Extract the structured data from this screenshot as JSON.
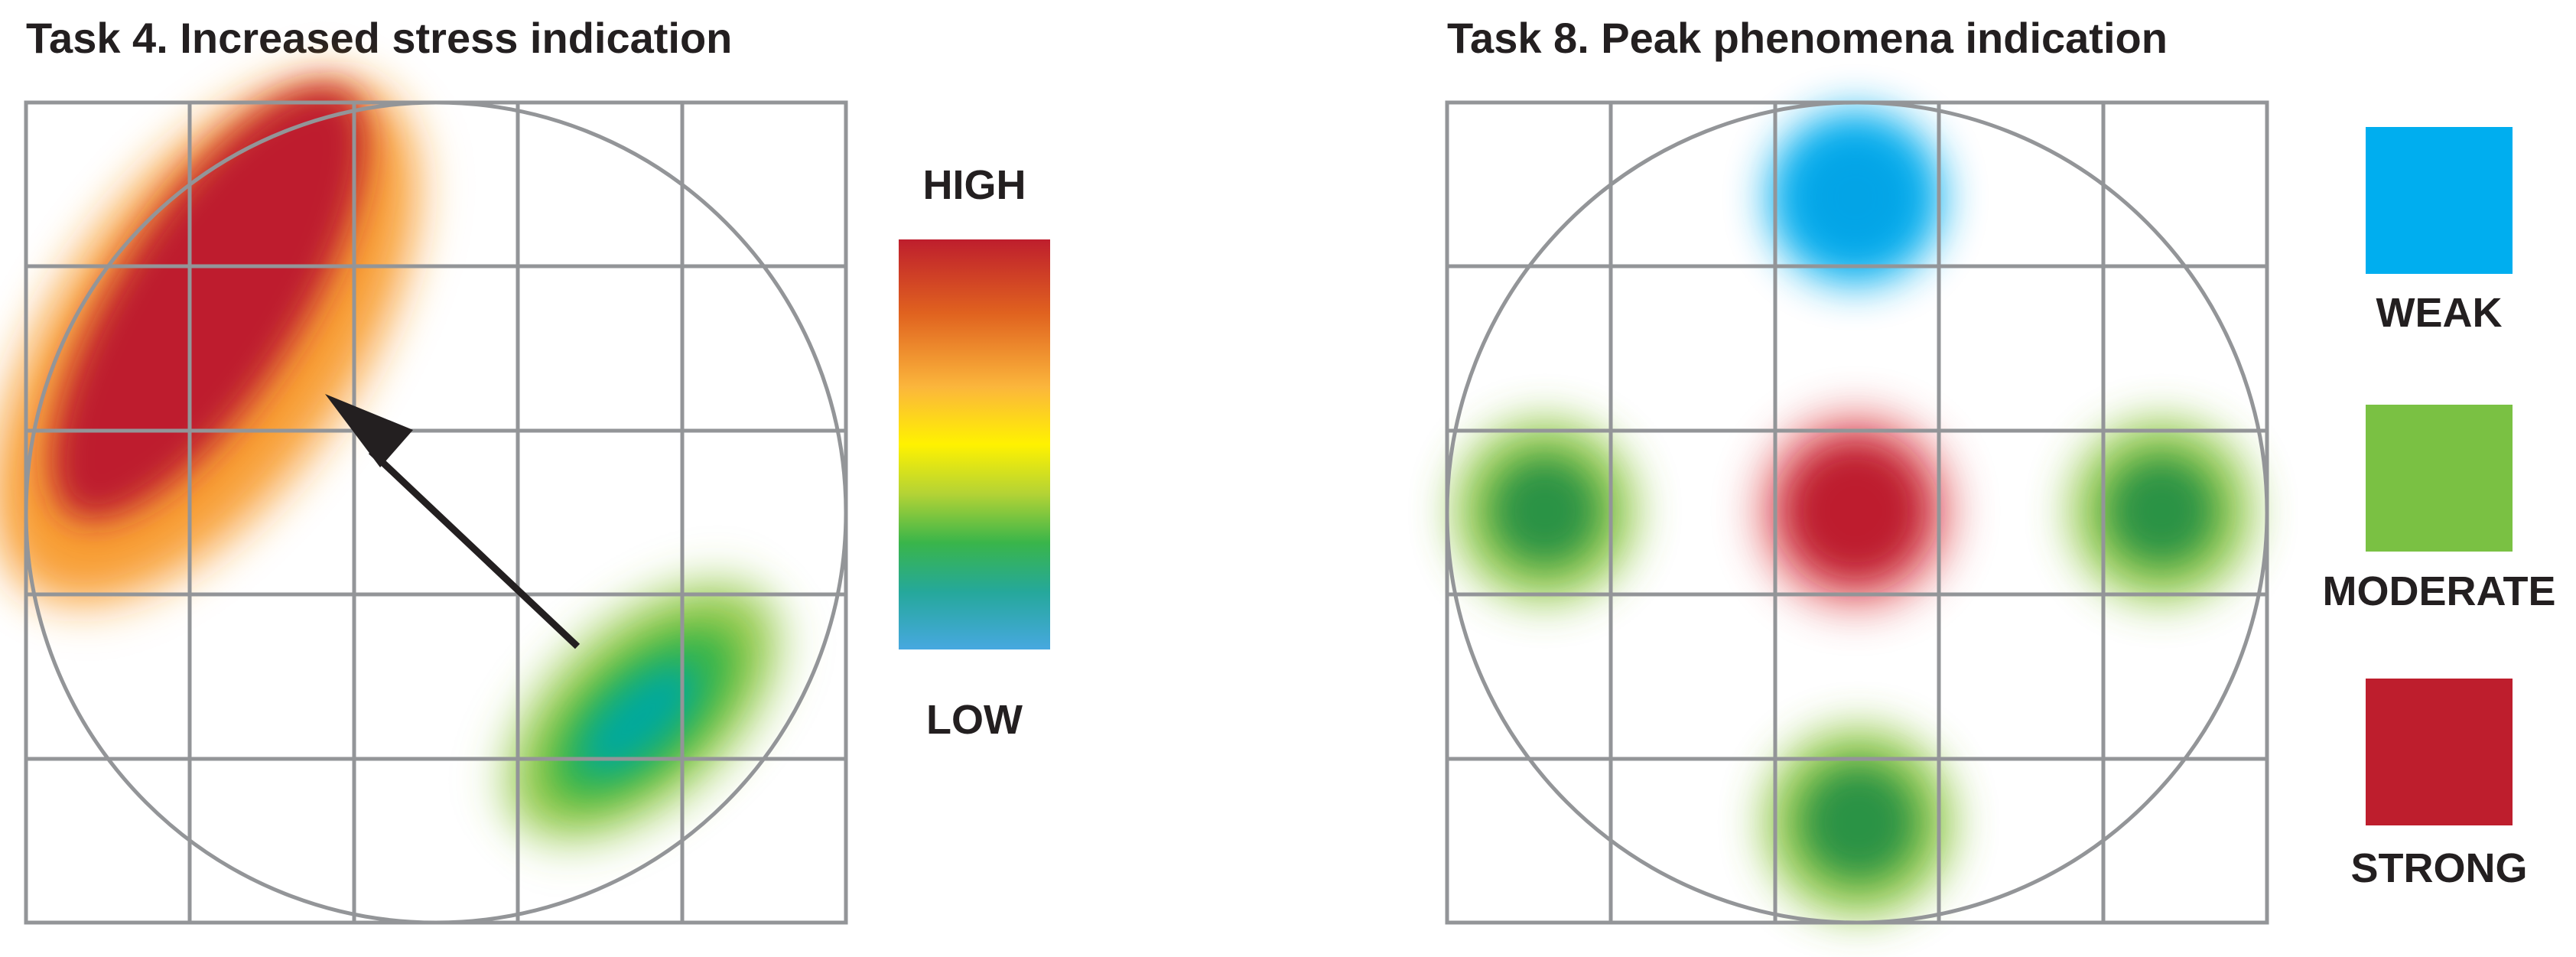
{
  "panels": [
    {
      "id": "left",
      "title": "Task 4. Increased stress indication",
      "scale": {
        "high_label": "HIGH",
        "low_label": "LOW",
        "gradient_stops": [
          {
            "offset": 0.0,
            "color": "#be1e2d"
          },
          {
            "offset": 0.18,
            "color": "#e0621f"
          },
          {
            "offset": 0.36,
            "color": "#fbb63c"
          },
          {
            "offset": 0.5,
            "color": "#fff200"
          },
          {
            "offset": 0.62,
            "color": "#b4d335"
          },
          {
            "offset": 0.74,
            "color": "#39b54a"
          },
          {
            "offset": 0.86,
            "color": "#25a89b"
          },
          {
            "offset": 1.0,
            "color": "#47a8e0"
          }
        ]
      },
      "arrow_icon": "arrow-up-left-icon"
    },
    {
      "id": "right",
      "title": "Task 8. Peak phenomena indication",
      "legend": [
        {
          "label": "WEAK",
          "color": "#00aeef"
        },
        {
          "label": "MODERATE",
          "color": "#7ac143"
        },
        {
          "label": "STRONG",
          "color": "#be1e2d"
        }
      ]
    }
  ],
  "colors": {
    "grid_stroke": "#939598",
    "text": "#231f20",
    "arrow": "#231f20"
  }
}
